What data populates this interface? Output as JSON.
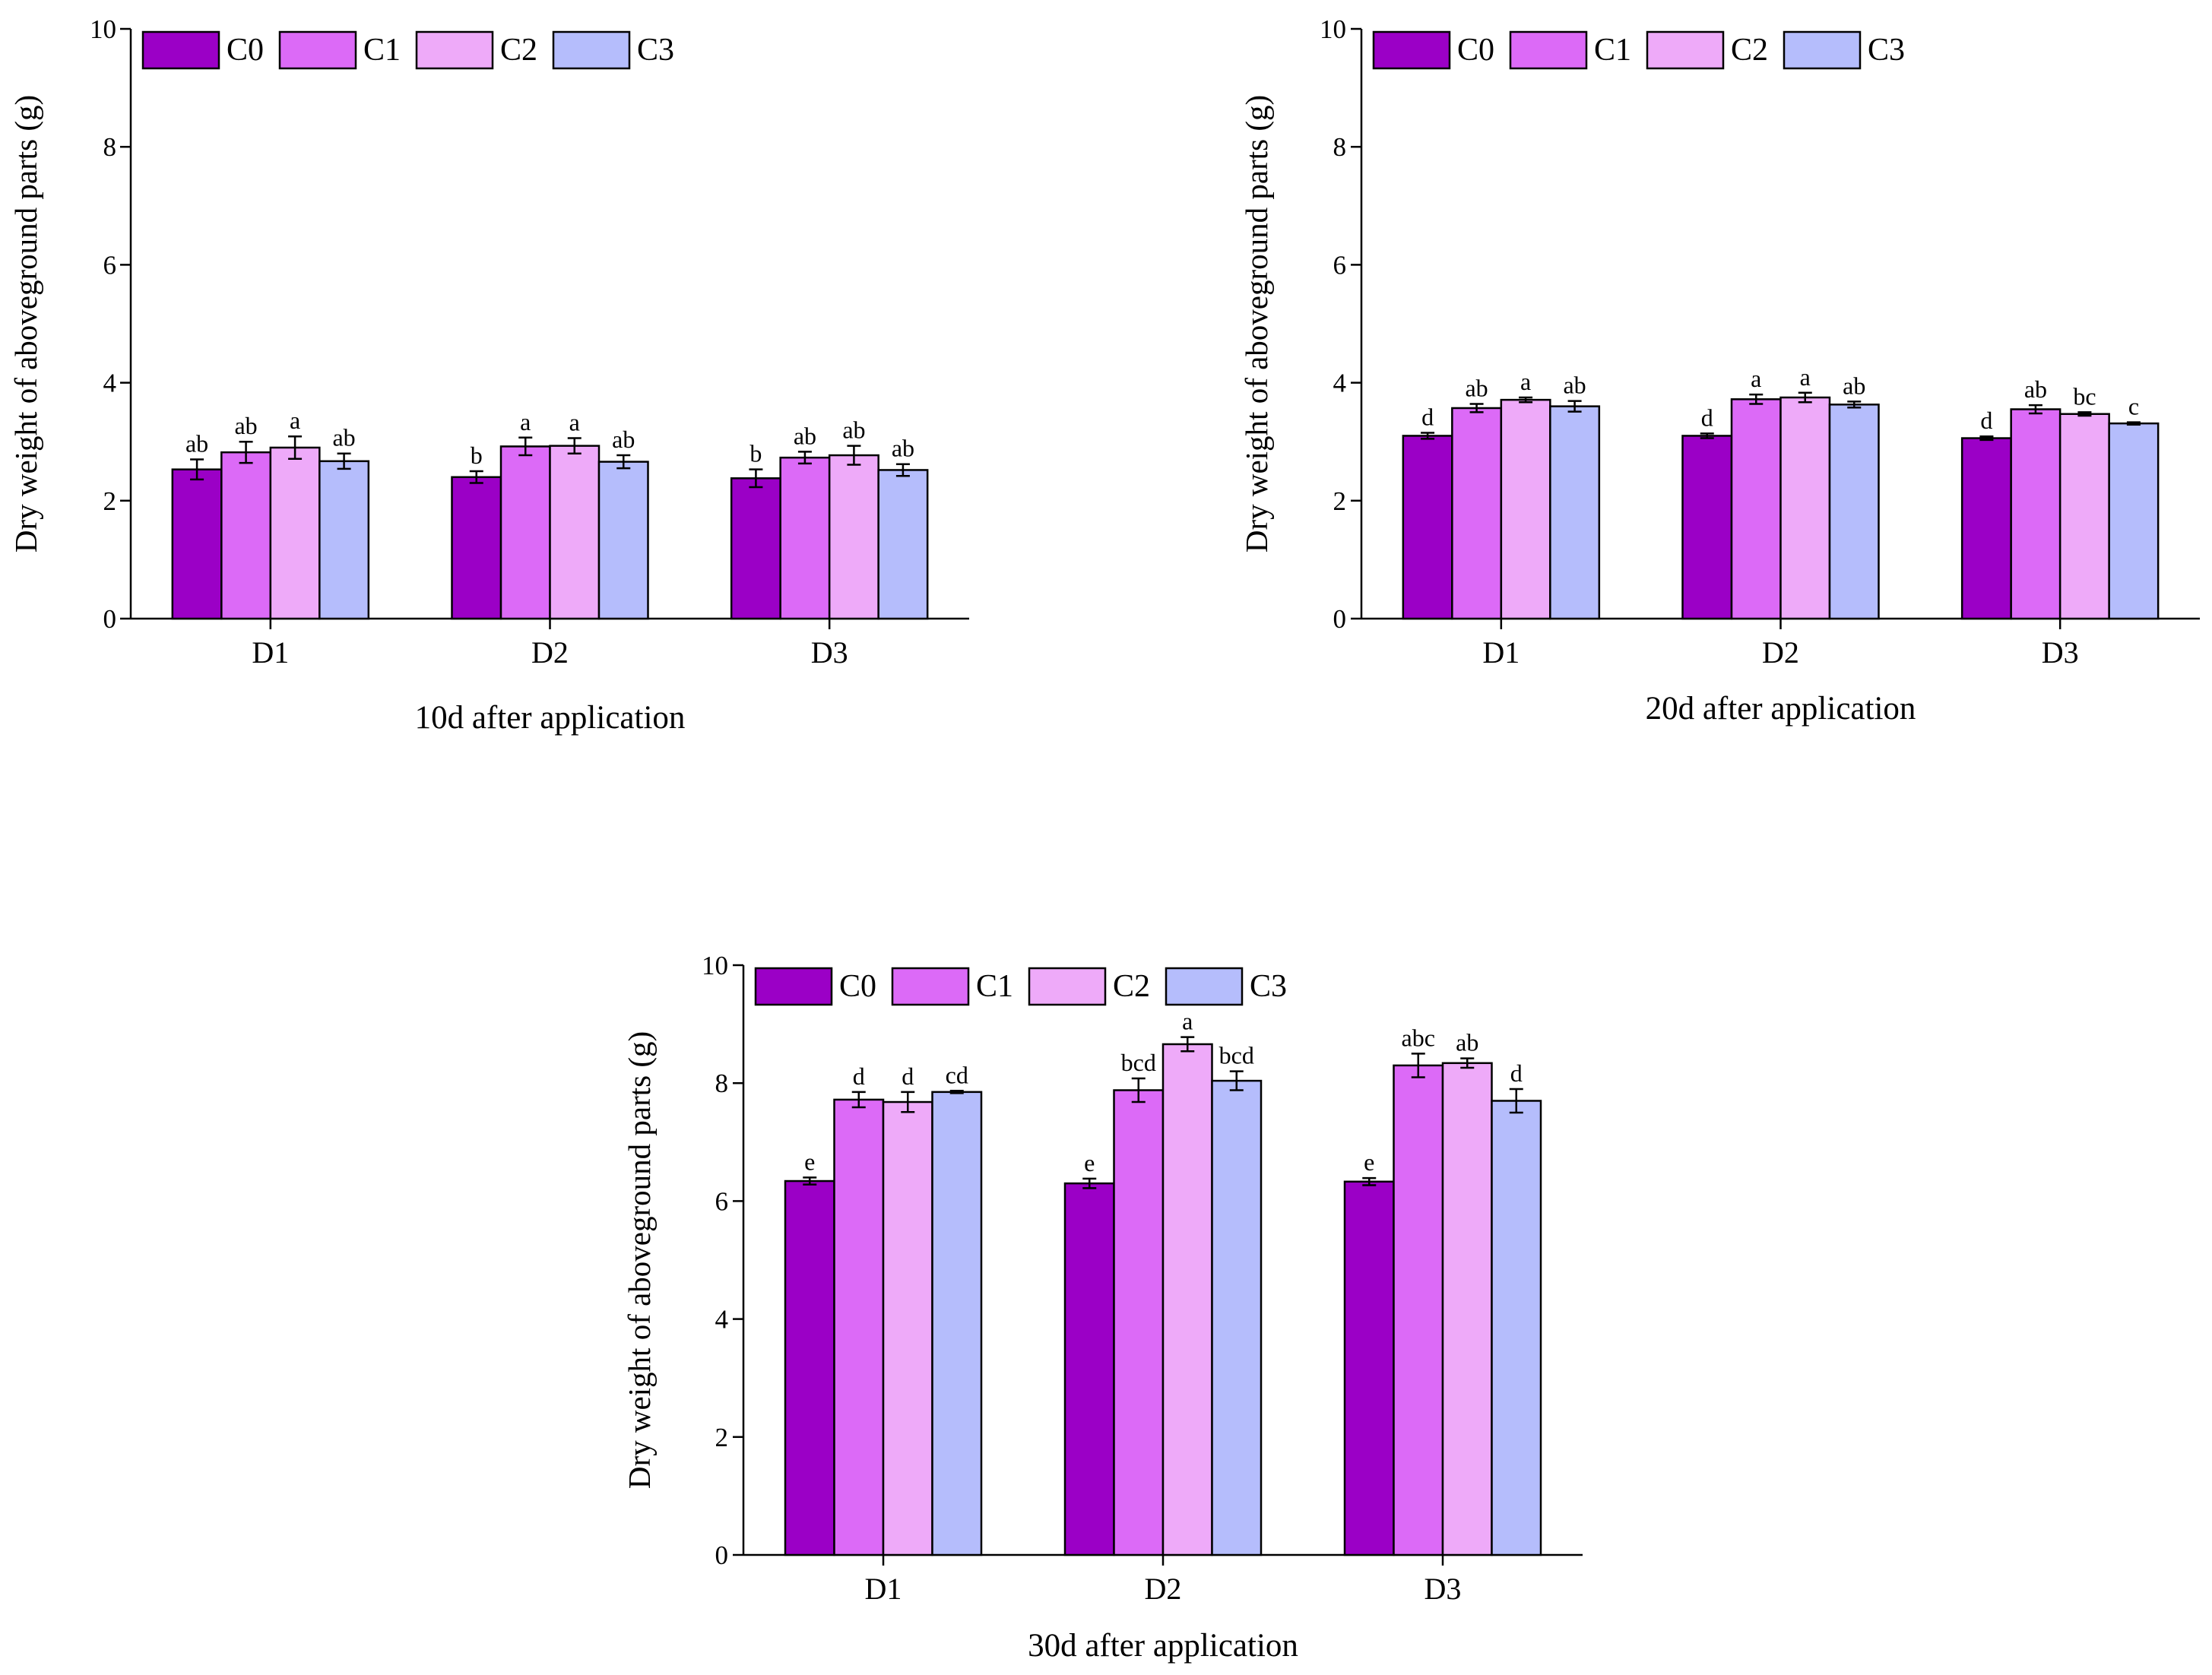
{
  "chart_data": [
    {
      "type": "bar",
      "title": "10d after application",
      "xlabel": "",
      "ylabel": "Dry weight of aboveground parts (g)",
      "ylim": [
        0,
        10
      ],
      "yticks": [
        "0",
        "2",
        "4",
        "6",
        "8",
        "10"
      ],
      "categories": [
        "D1",
        "D2",
        "D3"
      ],
      "legend": "top-left",
      "series": [
        {
          "name": "C0",
          "color": "#9b00c6",
          "values": [
            2.53,
            2.4,
            2.38
          ],
          "errors": [
            0.17,
            0.1,
            0.15
          ],
          "labels": [
            "ab",
            "b",
            "b"
          ]
        },
        {
          "name": "C1",
          "color": "#dc6af7",
          "values": [
            2.82,
            2.92,
            2.73
          ],
          "errors": [
            0.18,
            0.15,
            0.1
          ],
          "labels": [
            "ab",
            "a",
            "ab"
          ]
        },
        {
          "name": "C2",
          "color": "#eeaaf9",
          "values": [
            2.9,
            2.93,
            2.77
          ],
          "errors": [
            0.19,
            0.13,
            0.16
          ],
          "labels": [
            "a",
            "a",
            "ab"
          ]
        },
        {
          "name": "C3",
          "color": "#b5bdfc",
          "values": [
            2.67,
            2.66,
            2.52
          ],
          "errors": [
            0.13,
            0.11,
            0.1
          ],
          "labels": [
            "ab",
            "ab",
            "ab"
          ]
        }
      ]
    },
    {
      "type": "bar",
      "title": "20d after application",
      "xlabel": "",
      "ylabel": "Dry weight of aboveground parts (g)",
      "ylim": [
        0,
        10
      ],
      "yticks": [
        "0",
        "2",
        "4",
        "6",
        "8",
        "10"
      ],
      "categories": [
        "D1",
        "D2",
        "D3"
      ],
      "legend": "top-left",
      "series": [
        {
          "name": "C0",
          "color": "#9b00c6",
          "values": [
            3.1,
            3.1,
            3.06
          ],
          "errors": [
            0.05,
            0.04,
            0.03
          ],
          "labels": [
            "d",
            "d",
            "d"
          ]
        },
        {
          "name": "C1",
          "color": "#dc6af7",
          "values": [
            3.57,
            3.72,
            3.55
          ],
          "errors": [
            0.07,
            0.08,
            0.07
          ],
          "labels": [
            "ab",
            "a",
            "ab"
          ]
        },
        {
          "name": "C2",
          "color": "#eeaaf9",
          "values": [
            3.71,
            3.75,
            3.47
          ],
          "errors": [
            0.04,
            0.08,
            0.03
          ],
          "labels": [
            "a",
            "a",
            "bc"
          ]
        },
        {
          "name": "C3",
          "color": "#b5bdfc",
          "values": [
            3.6,
            3.63,
            3.31
          ],
          "errors": [
            0.09,
            0.05,
            0.02
          ],
          "labels": [
            "ab",
            "ab",
            "c"
          ]
        }
      ]
    },
    {
      "type": "bar",
      "title": "30d after application",
      "xlabel": "",
      "ylabel": "Dry weight of aboveground parts (g)",
      "ylim": [
        0,
        10
      ],
      "yticks": [
        "0",
        "2",
        "4",
        "6",
        "8",
        "10"
      ],
      "categories": [
        "D1",
        "D2",
        "D3"
      ],
      "legend": "top-left",
      "series": [
        {
          "name": "C0",
          "color": "#9b00c6",
          "values": [
            6.34,
            6.3,
            6.33
          ],
          "errors": [
            0.06,
            0.08,
            0.06
          ],
          "labels": [
            "e",
            "e",
            "e"
          ]
        },
        {
          "name": "C1",
          "color": "#dc6af7",
          "values": [
            7.72,
            7.88,
            8.3
          ],
          "errors": [
            0.13,
            0.2,
            0.2
          ],
          "labels": [
            "d",
            "bcd",
            "abc"
          ]
        },
        {
          "name": "C2",
          "color": "#eeaaf9",
          "values": [
            7.68,
            8.66,
            8.34
          ],
          "errors": [
            0.17,
            0.12,
            0.08
          ],
          "labels": [
            "d",
            "a",
            "ab"
          ]
        },
        {
          "name": "C3",
          "color": "#b5bdfc",
          "values": [
            7.85,
            8.04,
            7.7
          ],
          "errors": [
            0.02,
            0.16,
            0.2
          ],
          "labels": [
            "cd",
            "bcd",
            "d"
          ]
        }
      ]
    }
  ]
}
